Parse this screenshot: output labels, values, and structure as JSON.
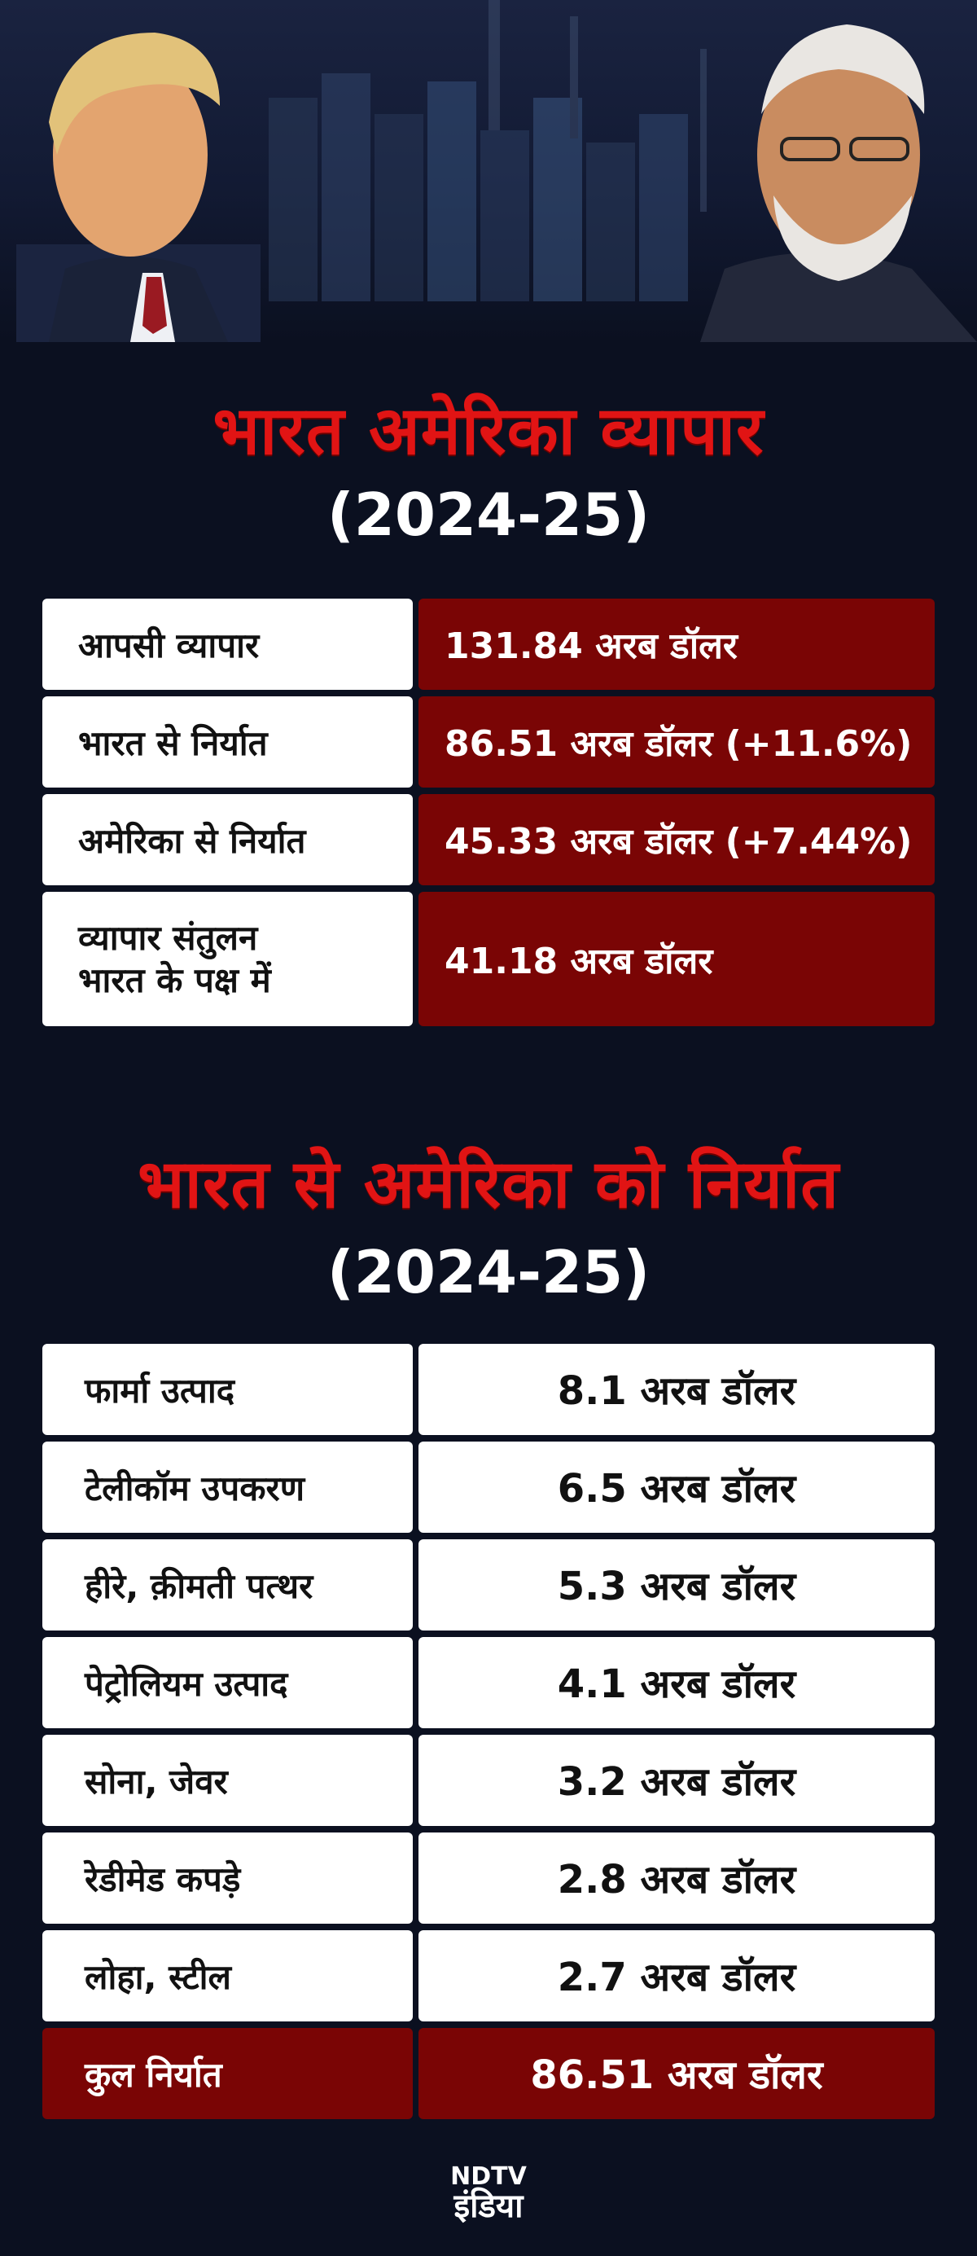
{
  "section1": {
    "title": "भारत अमेरिका व्यापार",
    "year": "(2024-25)",
    "rows": [
      {
        "label": "आपसी व्यापार",
        "value": "131.84 अरब डॉलर"
      },
      {
        "label": "भारत से निर्यात",
        "value": "86.51 अरब डॉलर (+11.6%)"
      },
      {
        "label": "अमेरिका से निर्यात",
        "value": "45.33 अरब डॉलर (+7.44%)"
      },
      {
        "label_line1": "व्यापार संतुलन",
        "label_line2": "भारत के पक्ष में",
        "value": "41.18 अरब डॉलर"
      }
    ]
  },
  "section2": {
    "title": "भारत से अमेरिका को निर्यात",
    "year": "(2024-25)",
    "rows": [
      {
        "label": "फार्मा उत्पाद",
        "value": "8.1 अरब डॉलर"
      },
      {
        "label": "टेलीकॉम उपकरण",
        "value": "6.5 अरब डॉलर"
      },
      {
        "label": "हीरे, क़ीमती पत्थर",
        "value": "5.3 अरब डॉलर"
      },
      {
        "label": "पेट्रोलियम उत्पाद",
        "value": "4.1 अरब डॉलर"
      },
      {
        "label": "सोना, जेवर",
        "value": "3.2 अरब डॉलर"
      },
      {
        "label": "रेडीमेड कपड़े",
        "value": "2.8 अरब डॉलर"
      },
      {
        "label": "लोहा, स्टील",
        "value": "2.7 अरब डॉलर"
      }
    ],
    "total": {
      "label": "कुल निर्यात",
      "value": "86.51 अरब डॉलर"
    }
  },
  "logo": {
    "text": "NDTV इंडिया"
  },
  "colors": {
    "background": "#0b1020",
    "accent_red": "#e11414",
    "cell_dark_red": "#7a0505"
  }
}
